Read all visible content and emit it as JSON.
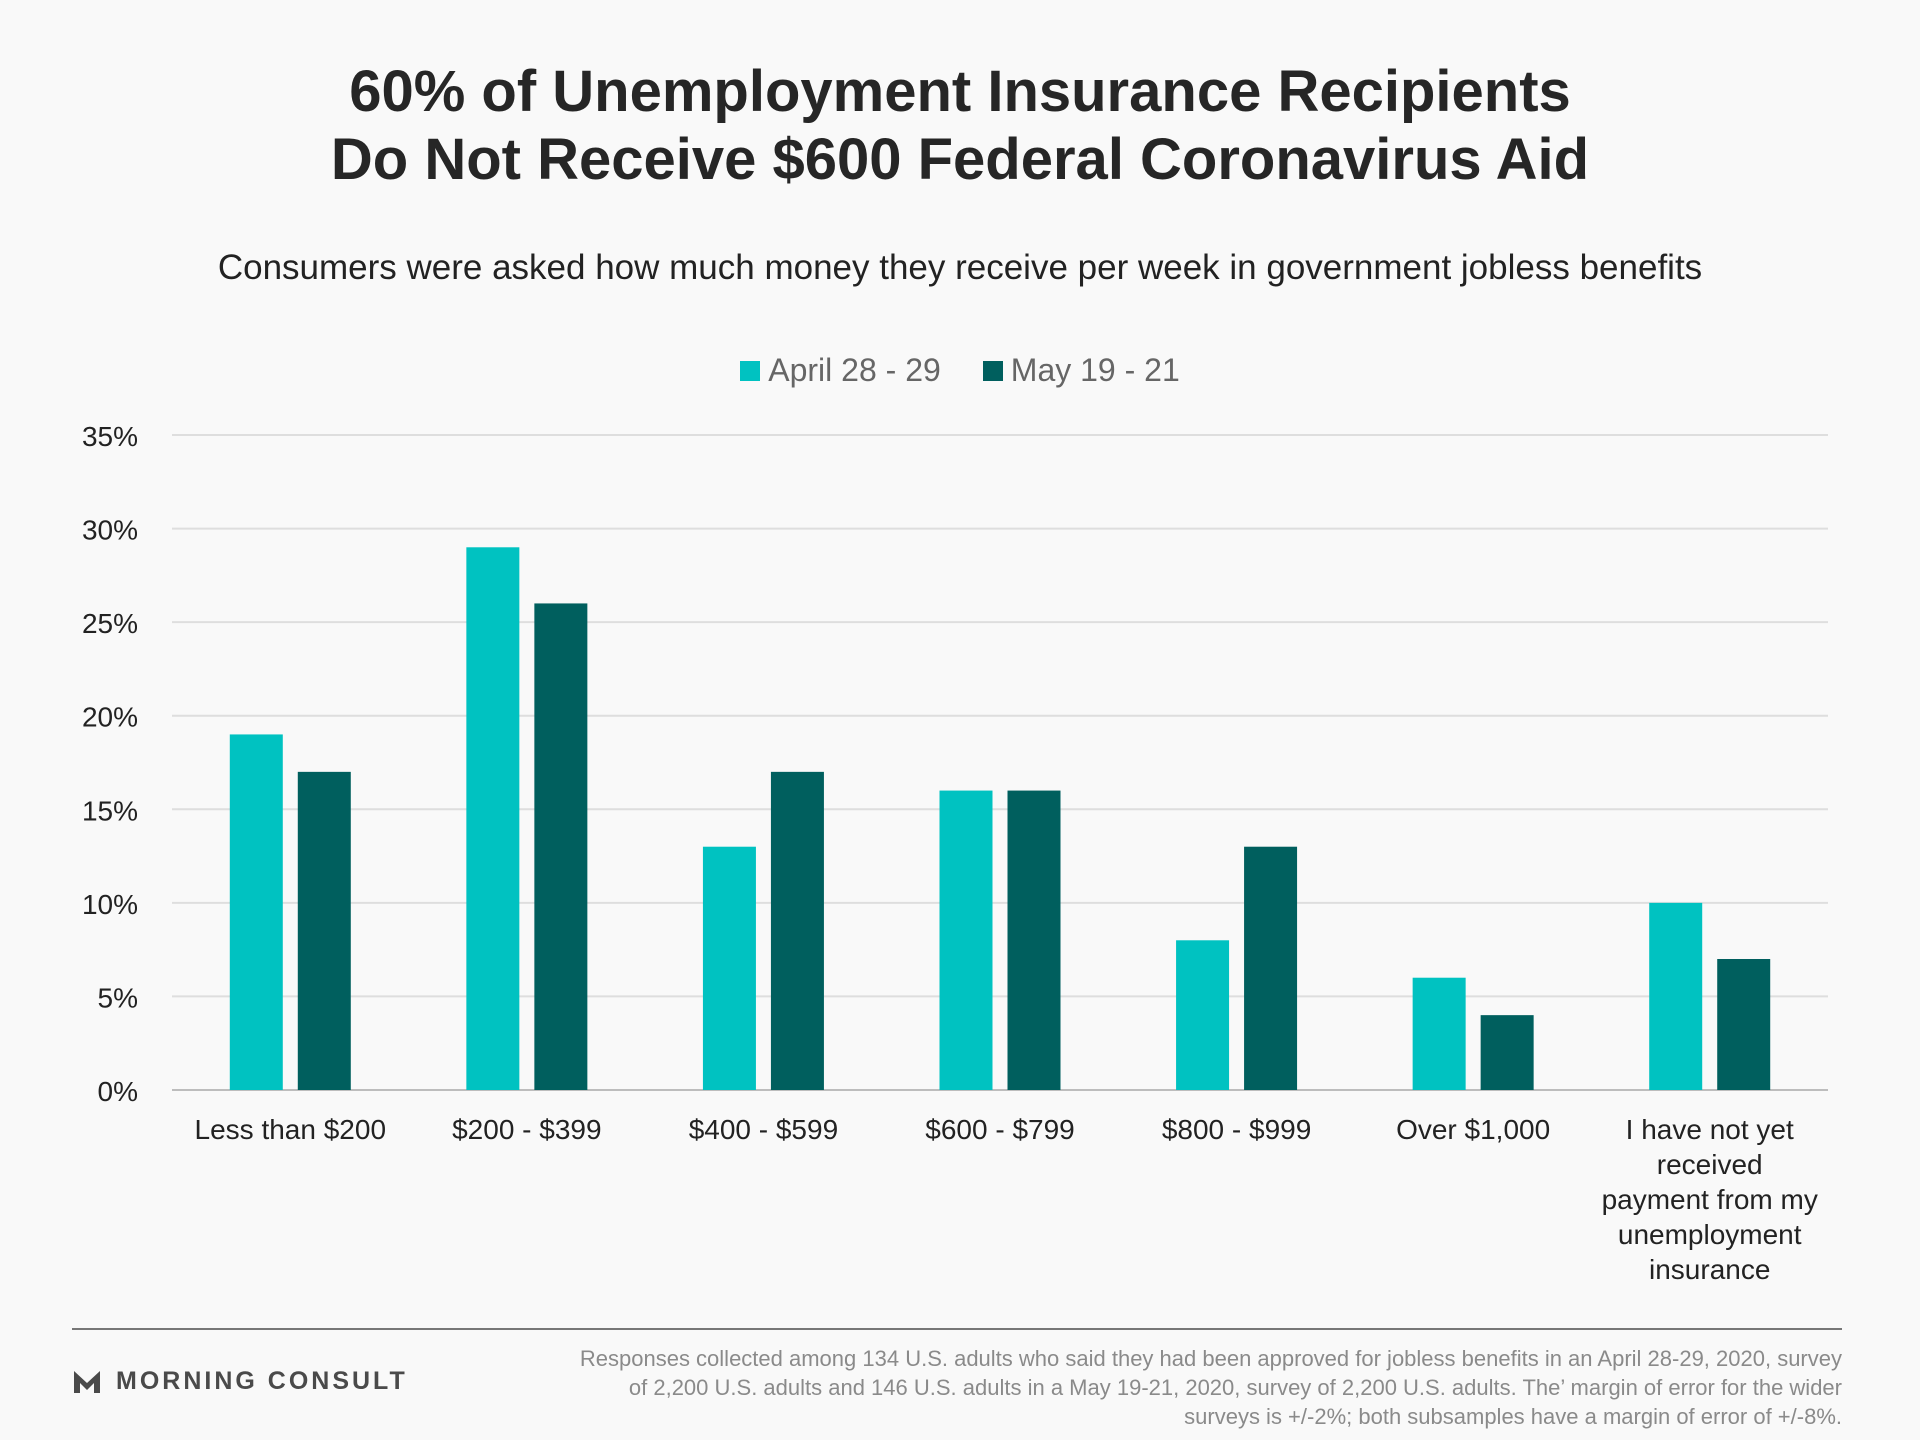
{
  "title_line1": "60% of Unemployment Insurance Recipients",
  "title_line2": "Do Not Receive $600 Federal Coronavirus Aid",
  "subtitle": "Consumers were asked how much money they receive per week in government jobless benefits",
  "brand": "MORNING CONSULT",
  "footnote": "Responses collected among 134 U.S. adults who said they had been approved for jobless benefits in an April 28-29, 2020, survey of 2,200 U.S. adults and 146 U.S. adults in a May 19-21, 2020, survey of 2,200 U.S. adults. The’ margin of error for the wider surveys is +/-2%; both subsamples have a margin of error of +/-8%.",
  "colors": {
    "series1": "#00c2c1",
    "series2": "#005f5e",
    "grid": "#dedede",
    "axis": "#bdbdbd"
  },
  "chart_data": {
    "type": "bar",
    "categories": [
      "Less than $200",
      "$200 - $399",
      "$400 - $599",
      "$600 - $799",
      "$800 - $999",
      "Over $1,000",
      "I have not yet received payment from my unemployment insurance"
    ],
    "series": [
      {
        "name": "April 28 - 29",
        "values": [
          19,
          29,
          13,
          16,
          8,
          6,
          10
        ]
      },
      {
        "name": "May 19 - 21",
        "values": [
          17,
          26,
          17,
          16,
          13,
          4,
          7
        ]
      }
    ],
    "yticks": [
      "0%",
      "5%",
      "10%",
      "15%",
      "20%",
      "25%",
      "30%",
      "35%"
    ],
    "ylim": [
      0,
      35
    ],
    "grid": true,
    "legend_position": "top-center"
  }
}
